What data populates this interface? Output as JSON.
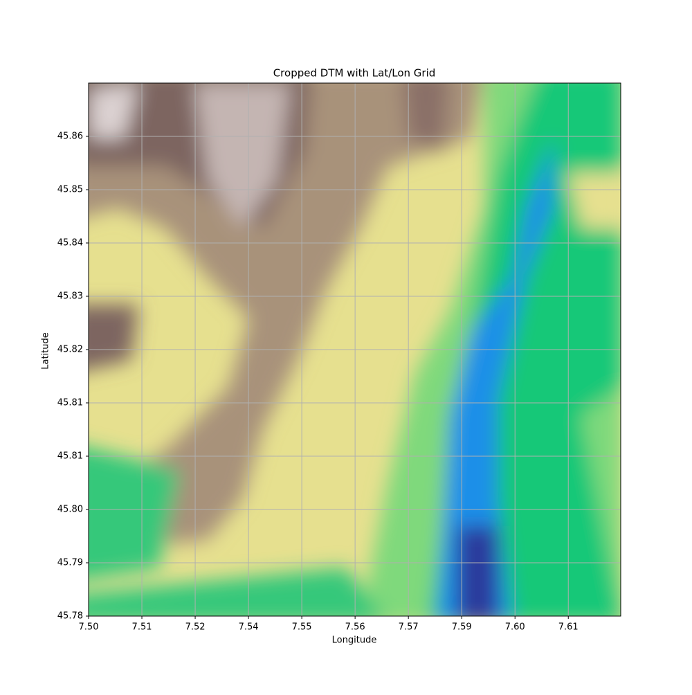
{
  "chart_data": {
    "type": "image",
    "title": "Cropped DTM with Lat/Lon Grid",
    "x_label": "Longitude",
    "y_label": "Latitude",
    "xlim": [
      7.5,
      7.6218
    ],
    "ylim": [
      45.78,
      45.865
    ],
    "xticks": [
      {
        "value": 7.5,
        "label": "7.50"
      },
      {
        "value": 7.5122,
        "label": "7.51"
      },
      {
        "value": 7.5244,
        "label": "7.52"
      },
      {
        "value": 7.5366,
        "label": "7.54"
      },
      {
        "value": 7.5488,
        "label": "7.55"
      },
      {
        "value": 7.561,
        "label": "7.56"
      },
      {
        "value": 7.5732,
        "label": "7.57"
      },
      {
        "value": 7.5854,
        "label": "7.59"
      },
      {
        "value": 7.5976,
        "label": "7.60"
      },
      {
        "value": 7.6098,
        "label": "7.61"
      }
    ],
    "yticks": [
      {
        "value": 45.78,
        "label": "45.78"
      },
      {
        "value": 45.7885,
        "label": "45.79"
      },
      {
        "value": 45.797,
        "label": "45.80"
      },
      {
        "value": 45.8055,
        "label": "45.81"
      },
      {
        "value": 45.814,
        "label": "45.81"
      },
      {
        "value": 45.8225,
        "label": "45.82"
      },
      {
        "value": 45.831,
        "label": "45.83"
      },
      {
        "value": 45.8395,
        "label": "45.84"
      },
      {
        "value": 45.848,
        "label": "45.85"
      },
      {
        "value": 45.8565,
        "label": "45.86"
      }
    ],
    "grid": true
  }
}
